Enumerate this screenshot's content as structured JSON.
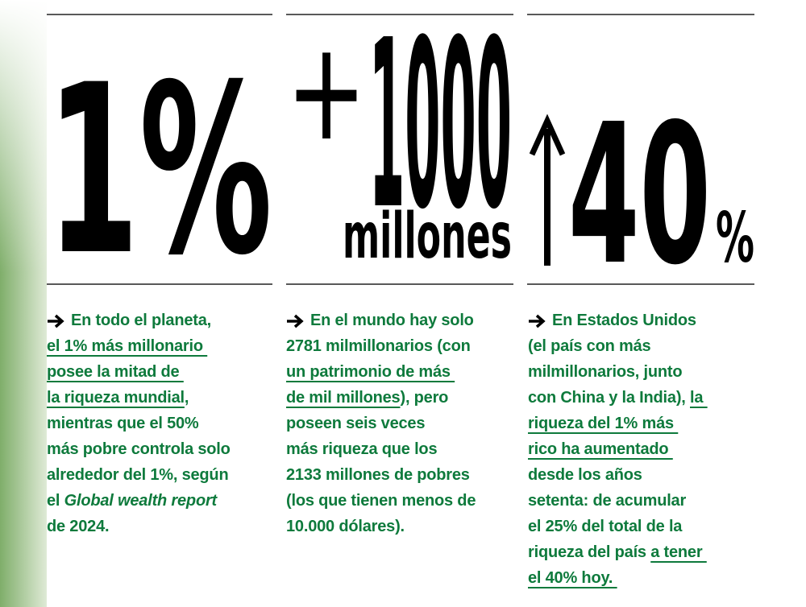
{
  "columns": [
    {
      "stat": {
        "figure": "1%"
      },
      "lines": [
        [
          {
            "text": "En todo el planeta,"
          }
        ],
        [
          {
            "text": "el 1% más millonario ",
            "style": "underline"
          }
        ],
        [
          {
            "text": "posee la mitad de ",
            "style": "underline"
          }
        ],
        [
          {
            "text": "la riqueza mundial",
            "style": "underline"
          },
          {
            "text": ","
          }
        ],
        [
          {
            "text": "mientras que el 50%"
          }
        ],
        [
          {
            "text": "más pobre controla solo"
          }
        ],
        [
          {
            "text": "alrededor del 1%, según"
          }
        ],
        [
          {
            "text": "el "
          },
          {
            "text": "Global wealth report",
            "style": "italic"
          }
        ],
        [
          {
            "text": "de 2024."
          }
        ]
      ]
    },
    {
      "stat": {
        "sign": "+",
        "figure": "1000",
        "unit": "millones"
      },
      "lines": [
        [
          {
            "text": "En el mundo hay solo"
          }
        ],
        [
          {
            "text": "2781 milmillonarios (con"
          }
        ],
        [
          {
            "text": "un patrimonio de más ",
            "style": "underline"
          }
        ],
        [
          {
            "text": "de mil millones",
            "style": "underline"
          },
          {
            "text": "), pero"
          }
        ],
        [
          {
            "text": "poseen seis veces"
          }
        ],
        [
          {
            "text": "más riqueza que los"
          }
        ],
        [
          {
            "text": "2133 millones de pobres"
          }
        ],
        [
          {
            "text": "(los que tienen menos de"
          }
        ],
        [
          {
            "text": "10.000 dólares)."
          }
        ]
      ]
    },
    {
      "stat": {
        "figure": "40",
        "unit": "%"
      },
      "lines": [
        [
          {
            "text": "En Estados Unidos"
          }
        ],
        [
          {
            "text": "(el país con más"
          }
        ],
        [
          {
            "text": "milmillonarios, junto"
          }
        ],
        [
          {
            "text": "con China y la India), "
          },
          {
            "text": "la ",
            "style": "underline"
          }
        ],
        [
          {
            "text": "riqueza del 1% más ",
            "style": "underline"
          }
        ],
        [
          {
            "text": "rico ha aumentado ",
            "style": "underline"
          }
        ],
        [
          {
            "text": "desde los años"
          }
        ],
        [
          {
            "text": "setenta: de acumular"
          }
        ],
        [
          {
            "text": "el 25% del total de la"
          }
        ],
        [
          {
            "text": "riqueza del país "
          },
          {
            "text": "a tener ",
            "style": "underline"
          }
        ],
        [
          {
            "text": "el 40% hoy. ",
            "style": "underline"
          }
        ]
      ]
    }
  ]
}
